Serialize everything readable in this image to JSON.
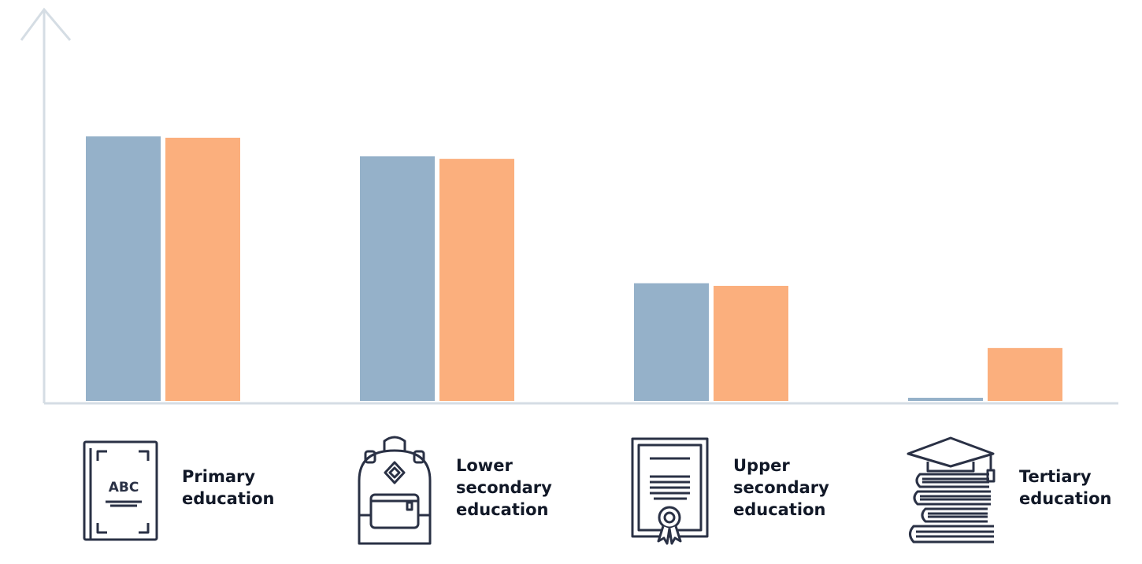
{
  "chart_data": {
    "type": "bar",
    "categories": [
      "Primary\neducation",
      "Lower\nsecondary\neducation",
      "Upper\nsecondary\neducation",
      "Tertiary\neducation"
    ],
    "category_icons": [
      "abc-book-icon",
      "backpack-icon",
      "diploma-certificate-icon",
      "graduation-books-icon"
    ],
    "series": [
      {
        "values": [
          100,
          92.5,
          44.5,
          1.2
        ],
        "color": "#95B1C9"
      },
      {
        "values": [
          99.5,
          91.5,
          43.5,
          20
        ],
        "color": "#FBAF7D"
      }
    ],
    "ylim": [
      0,
      148
    ],
    "title": "",
    "xlabel": "",
    "ylabel": "",
    "grid": false,
    "axis_color": "#D5DDE4",
    "label_color": "#111827",
    "icon_color": "#2A3145"
  }
}
